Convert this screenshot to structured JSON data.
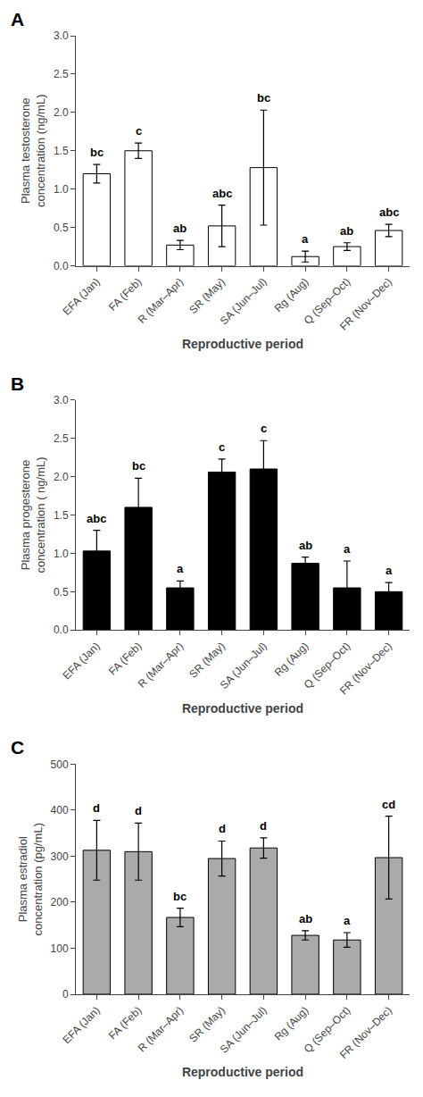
{
  "chart_data": [
    {
      "type": "bar",
      "title": "A",
      "categories": [
        "EFA (Jan)",
        "FA (Feb)",
        "R (Mar–Apr)",
        "SR (May)",
        "SA (Jun–Jul)",
        "Rg (Aug)",
        "Q (Sep–Oct)",
        "FR (Nov–Dec)"
      ],
      "values": [
        1.2,
        1.5,
        0.27,
        0.52,
        1.28,
        0.12,
        0.25,
        0.46
      ],
      "errors": [
        0.12,
        0.1,
        0.06,
        0.27,
        0.75,
        0.07,
        0.05,
        0.08
      ],
      "annotations": [
        "bc",
        "c",
        "ab",
        "abc",
        "bc",
        "a",
        "ab",
        "abc"
      ],
      "color": "white",
      "xlabel": "Reproductive period",
      "ylabel": "Plasma testosterone\nconcentration (ng/mL)",
      "ylim": [
        0,
        3.0
      ],
      "yticks": [
        {
          "value": 0,
          "label": "0.0"
        },
        0.5,
        {
          "value": 1,
          "label": "1.0"
        },
        1.5,
        {
          "value": 2,
          "label": "2.0"
        },
        2.5,
        {
          "value": 3,
          "label": "3.0"
        }
      ],
      "grid": false
    },
    {
      "type": "bar",
      "title": "B",
      "categories": [
        "EFA (Jan)",
        "FA (Feb)",
        "R (Mar–Apr)",
        "SR (May)",
        "SA (Jun–Jul)",
        "Rg (Aug)",
        "Q (Sep–Oct)",
        "FR (Nov–Dec)"
      ],
      "values": [
        1.03,
        1.6,
        0.55,
        2.06,
        2.1,
        0.87,
        0.55,
        0.5
      ],
      "errors": [
        0.27,
        0.38,
        0.09,
        0.17,
        0.37,
        0.08,
        0.35,
        0.12
      ],
      "annotations": [
        "abc",
        "bc",
        "a",
        "c",
        "c",
        "ab",
        "a",
        "a"
      ],
      "color": "black",
      "xlabel": "Reproductive period",
      "ylabel": "Plasma progesterone\nconcentration ( ng/mL)",
      "ylim": [
        0,
        3.0
      ],
      "yticks": [
        {
          "value": 0,
          "label": "0.0"
        },
        0.5,
        {
          "value": 1,
          "label": "1.0"
        },
        1.5,
        {
          "value": 2,
          "label": "2.0"
        },
        2.5,
        {
          "value": 3,
          "label": "3.0"
        }
      ],
      "grid": false
    },
    {
      "type": "bar",
      "title": "C",
      "categories": [
        "EFA (Jan)",
        "FA (Feb)",
        "R (Mar–Apr)",
        "SR (May)",
        "SA (Jun–Jul)",
        "Rg (Aug)",
        "Q (Sep–Oct)",
        "FR (Nov–Dec)"
      ],
      "values": [
        313,
        310,
        167,
        295,
        318,
        128,
        118,
        297
      ],
      "errors": [
        65,
        62,
        20,
        38,
        22,
        10,
        16,
        90
      ],
      "annotations": [
        "d",
        "d",
        "bc",
        "d",
        "d",
        "ab",
        "a",
        "cd"
      ],
      "color": "#aaaaaa",
      "xlabel": "Reproductive period",
      "ylabel": "Plasma estradiol\nconcentration (pg/mL)",
      "ylim": [
        0,
        500
      ],
      "yticks": [
        0,
        100,
        200,
        300,
        400,
        500
      ],
      "grid": false
    }
  ]
}
